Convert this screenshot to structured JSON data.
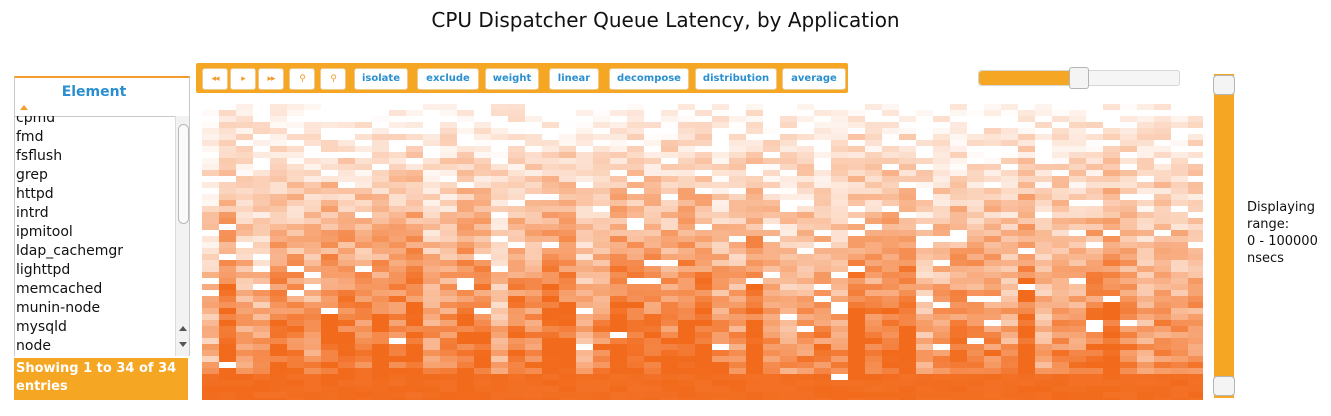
{
  "title": "CPU Dispatcher Queue Latency, by Application",
  "element_table": {
    "header": "Element",
    "items": [
      "cpmd",
      "fmd",
      "fsflush",
      "grep",
      "httpd",
      "intrd",
      "ipmitool",
      "ldap_cachemgr",
      "lighttpd",
      "memcached",
      "munin-node",
      "mysqld",
      "node"
    ],
    "footer": "Showing 1 to 34 of 34 entries"
  },
  "toolbar": {
    "nav_icons": [
      "rewind-icon",
      "play-icon",
      "fast-forward-icon",
      "zoom-in-icon",
      "zoom-out-icon"
    ],
    "nav_glyphs": [
      "◂◂",
      "▸",
      "▸▸",
      "⚲",
      "⚲"
    ],
    "buttons": [
      "isolate",
      "exclude",
      "weight",
      "linear",
      "decompose",
      "distribution",
      "average"
    ]
  },
  "top_slider": {
    "value": 0.5
  },
  "range_slider": {
    "low": 0,
    "high": 100000
  },
  "range_label": [
    "Displaying",
    "range:",
    "0 - 100000",
    "nsecs"
  ],
  "colors": {
    "accent": "#f5a623",
    "link": "#2a8fd0",
    "heat": "#f26a1b"
  }
}
